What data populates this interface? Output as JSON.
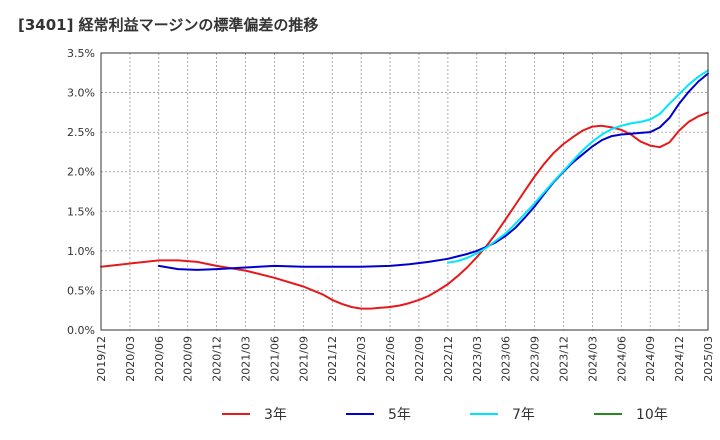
{
  "chart_data": {
    "type": "line",
    "title": "[3401]  経常利益マージンの標準偏差の推移",
    "xlabel": "",
    "ylabel": "",
    "x_tick_labels": [
      "2019/12",
      "2020/03",
      "2020/06",
      "2020/09",
      "2020/12",
      "2021/03",
      "2021/06",
      "2021/09",
      "2021/12",
      "2022/03",
      "2022/06",
      "2022/09",
      "2022/12",
      "2023/03",
      "2023/06",
      "2023/09",
      "2023/12",
      "2024/03",
      "2024/06",
      "2024/09",
      "2024/12",
      "2025/03"
    ],
    "y_tick_labels": [
      "0.0%",
      "0.5%",
      "1.0%",
      "1.5%",
      "2.0%",
      "2.5%",
      "3.0%",
      "3.5%"
    ],
    "ylim": [
      0,
      3.5
    ],
    "grid": true,
    "legend_position": "bottom",
    "series": [
      {
        "name": "3年",
        "color": "#e41a1c",
        "points": [
          [
            "2019/12",
            0.8
          ],
          [
            "2020/03",
            0.84
          ],
          [
            "2020/06",
            0.88
          ],
          [
            "2020/08",
            0.88
          ],
          [
            "2020/10",
            0.86
          ],
          [
            "2020/12",
            0.81
          ],
          [
            "2021/03",
            0.75
          ],
          [
            "2021/06",
            0.66
          ],
          [
            "2021/09",
            0.55
          ],
          [
            "2021/10",
            0.5
          ],
          [
            "2021/11",
            0.45
          ],
          [
            "2021/12",
            0.38
          ],
          [
            "2022/01",
            0.33
          ],
          [
            "2022/02",
            0.29
          ],
          [
            "2022/03",
            0.27
          ],
          [
            "2022/04",
            0.27
          ],
          [
            "2022/05",
            0.28
          ],
          [
            "2022/06",
            0.29
          ],
          [
            "2022/07",
            0.31
          ],
          [
            "2022/08",
            0.34
          ],
          [
            "2022/09",
            0.38
          ],
          [
            "2022/10",
            0.43
          ],
          [
            "2022/11",
            0.5
          ],
          [
            "2022/12",
            0.58
          ],
          [
            "2023/01",
            0.68
          ],
          [
            "2023/02",
            0.79
          ],
          [
            "2023/03",
            0.92
          ],
          [
            "2023/04",
            1.06
          ],
          [
            "2023/05",
            1.22
          ],
          [
            "2023/06",
            1.4
          ],
          [
            "2023/07",
            1.58
          ],
          [
            "2023/08",
            1.76
          ],
          [
            "2023/09",
            1.94
          ],
          [
            "2023/10",
            2.1
          ],
          [
            "2023/11",
            2.24
          ],
          [
            "2023/12",
            2.35
          ],
          [
            "2024/01",
            2.44
          ],
          [
            "2024/02",
            2.52
          ],
          [
            "2024/03",
            2.57
          ],
          [
            "2024/04",
            2.58
          ],
          [
            "2024/05",
            2.56
          ],
          [
            "2024/06",
            2.53
          ],
          [
            "2024/07",
            2.47
          ],
          [
            "2024/08",
            2.38
          ],
          [
            "2024/09",
            2.33
          ],
          [
            "2024/10",
            2.31
          ],
          [
            "2024/11",
            2.37
          ],
          [
            "2024/12",
            2.52
          ],
          [
            "2025/01",
            2.63
          ],
          [
            "2025/02",
            2.7
          ],
          [
            "2025/03",
            2.75
          ]
        ]
      },
      {
        "name": "5年",
        "color": "#0000cd",
        "points": [
          [
            "2020/06",
            0.81
          ],
          [
            "2020/08",
            0.77
          ],
          [
            "2020/10",
            0.76
          ],
          [
            "2020/12",
            0.77
          ],
          [
            "2021/03",
            0.79
          ],
          [
            "2021/06",
            0.81
          ],
          [
            "2021/09",
            0.8
          ],
          [
            "2021/12",
            0.8
          ],
          [
            "2022/03",
            0.8
          ],
          [
            "2022/06",
            0.81
          ],
          [
            "2022/08",
            0.83
          ],
          [
            "2022/10",
            0.86
          ],
          [
            "2022/12",
            0.9
          ],
          [
            "2023/01",
            0.93
          ],
          [
            "2023/02",
            0.96
          ],
          [
            "2023/03",
            1.0
          ],
          [
            "2023/04",
            1.05
          ],
          [
            "2023/05",
            1.11
          ],
          [
            "2023/06",
            1.19
          ],
          [
            "2023/07",
            1.29
          ],
          [
            "2023/08",
            1.42
          ],
          [
            "2023/09",
            1.56
          ],
          [
            "2023/10",
            1.72
          ],
          [
            "2023/11",
            1.87
          ],
          [
            "2023/12",
            2.0
          ],
          [
            "2024/01",
            2.12
          ],
          [
            "2024/02",
            2.22
          ],
          [
            "2024/03",
            2.32
          ],
          [
            "2024/04",
            2.4
          ],
          [
            "2024/05",
            2.45
          ],
          [
            "2024/06",
            2.47
          ],
          [
            "2024/07",
            2.48
          ],
          [
            "2024/08",
            2.49
          ],
          [
            "2024/09",
            2.5
          ],
          [
            "2024/10",
            2.56
          ],
          [
            "2024/11",
            2.68
          ],
          [
            "2024/12",
            2.86
          ],
          [
            "2025/01",
            3.01
          ],
          [
            "2025/02",
            3.14
          ],
          [
            "2025/03",
            3.24
          ]
        ]
      },
      {
        "name": "7年",
        "color": "#00e5ff",
        "points": [
          [
            "2022/12",
            0.85
          ],
          [
            "2023/01",
            0.87
          ],
          [
            "2023/02",
            0.91
          ],
          [
            "2023/03",
            0.97
          ],
          [
            "2023/04",
            1.04
          ],
          [
            "2023/05",
            1.13
          ],
          [
            "2023/06",
            1.22
          ],
          [
            "2023/07",
            1.34
          ],
          [
            "2023/08",
            1.47
          ],
          [
            "2023/09",
            1.6
          ],
          [
            "2023/10",
            1.74
          ],
          [
            "2023/11",
            1.88
          ],
          [
            "2023/12",
            2.01
          ],
          [
            "2024/01",
            2.14
          ],
          [
            "2024/02",
            2.27
          ],
          [
            "2024/03",
            2.38
          ],
          [
            "2024/04",
            2.47
          ],
          [
            "2024/05",
            2.54
          ],
          [
            "2024/06",
            2.58
          ],
          [
            "2024/07",
            2.61
          ],
          [
            "2024/08",
            2.63
          ],
          [
            "2024/09",
            2.66
          ],
          [
            "2024/10",
            2.73
          ],
          [
            "2024/11",
            2.86
          ],
          [
            "2024/12",
            2.98
          ],
          [
            "2025/01",
            3.1
          ],
          [
            "2025/02",
            3.2
          ],
          [
            "2025/03",
            3.28
          ]
        ]
      },
      {
        "name": "10年",
        "color": "#228b22",
        "points": []
      }
    ]
  }
}
